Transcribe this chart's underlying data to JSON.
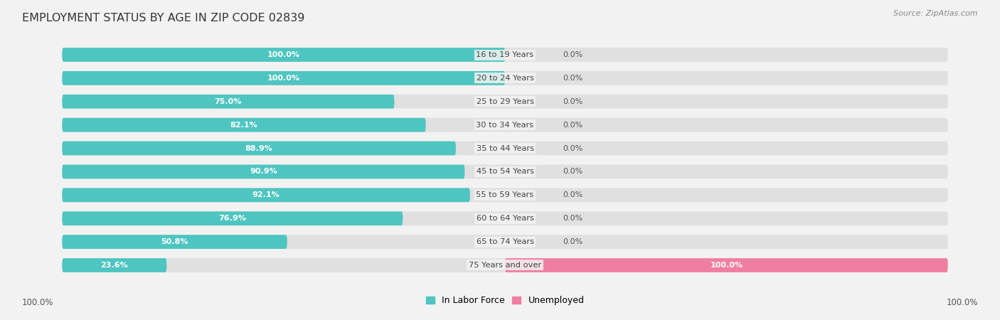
{
  "title": "EMPLOYMENT STATUS BY AGE IN ZIP CODE 02839",
  "source": "Source: ZipAtlas.com",
  "categories": [
    "16 to 19 Years",
    "20 to 24 Years",
    "25 to 29 Years",
    "30 to 34 Years",
    "35 to 44 Years",
    "45 to 54 Years",
    "55 to 59 Years",
    "60 to 64 Years",
    "65 to 74 Years",
    "75 Years and over"
  ],
  "labor_force": [
    100.0,
    100.0,
    75.0,
    82.1,
    88.9,
    90.9,
    92.1,
    76.9,
    50.8,
    23.6
  ],
  "unemployed": [
    0.0,
    0.0,
    0.0,
    0.0,
    0.0,
    0.0,
    0.0,
    0.0,
    0.0,
    100.0
  ],
  "labor_color": "#4EC5C1",
  "unemployed_color": "#F07EA0",
  "bg_color": "#f2f2f2",
  "bar_bg_color": "#e0e0e0",
  "title_color": "#333333",
  "white_label": "#ffffff",
  "dark_label": "#555555",
  "source_color": "#888888",
  "legend_label_labor": "In Labor Force",
  "legend_label_unemployed": "Unemployed",
  "bottom_left_label": "100.0%",
  "bottom_right_label": "100.0%",
  "xlim_left": -105,
  "xlim_right": 105,
  "rounding": 0.28,
  "bar_height": 0.6
}
